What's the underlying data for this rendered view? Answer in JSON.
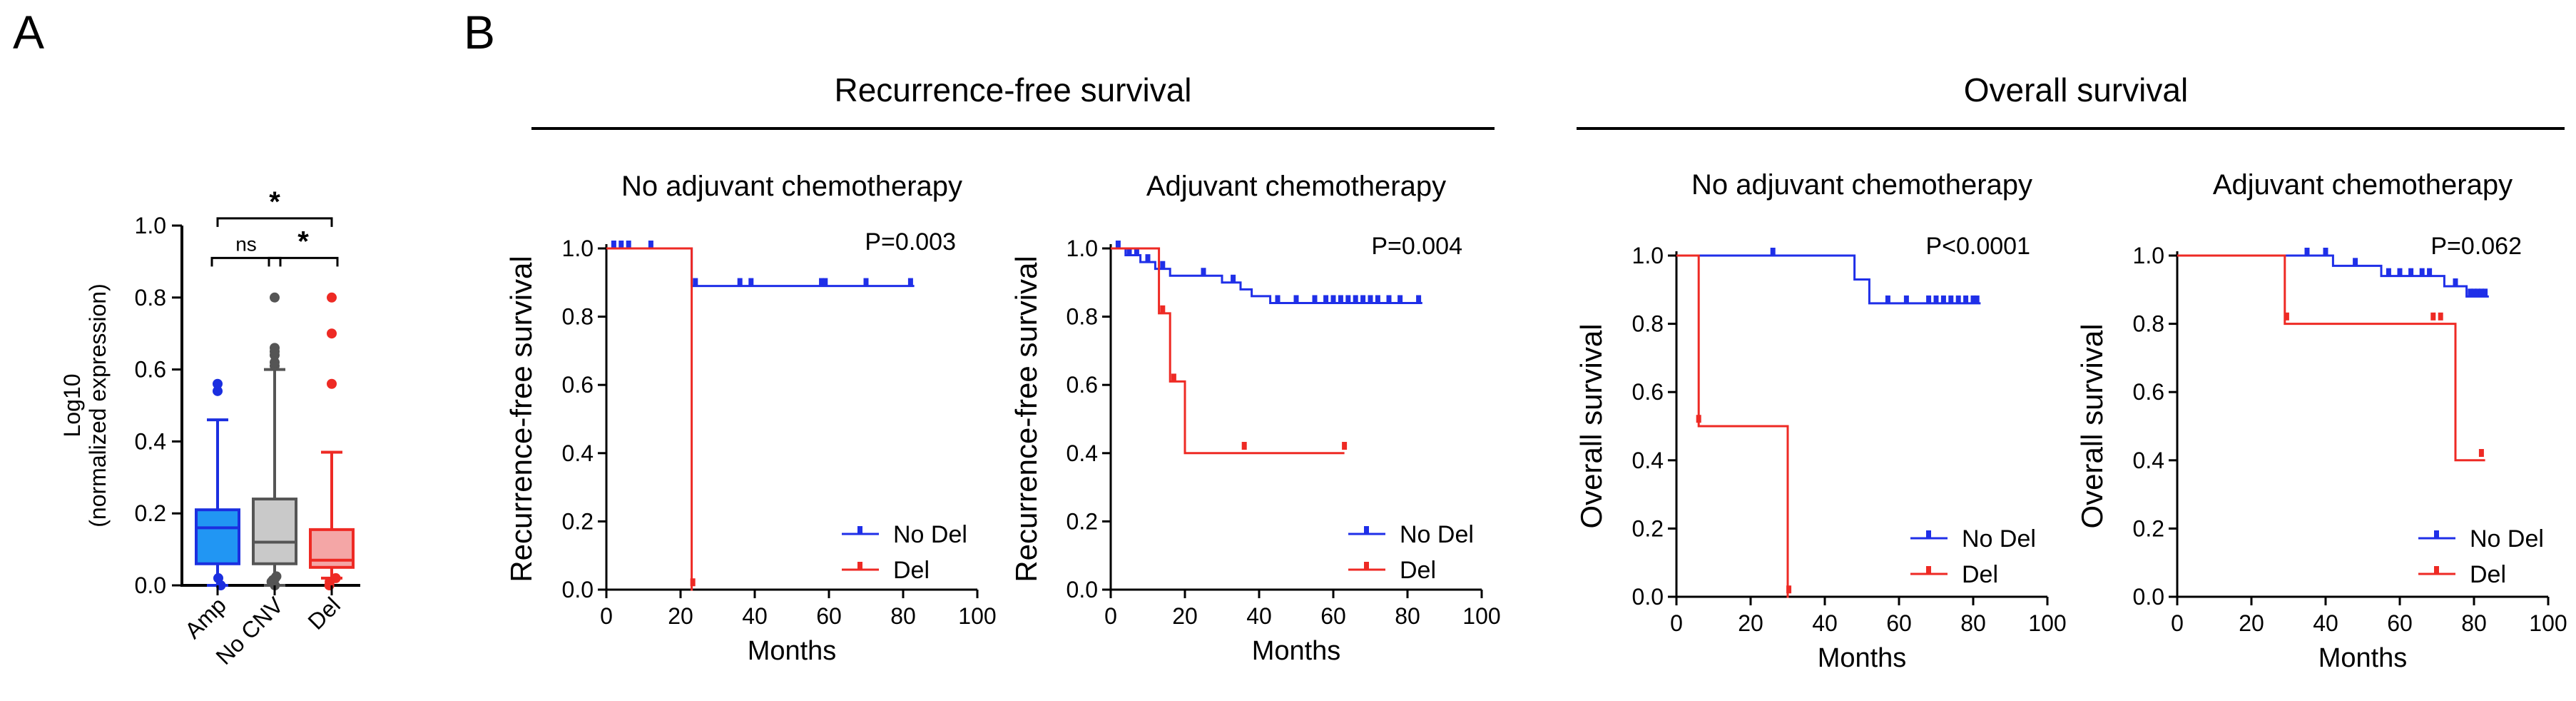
{
  "panels": {
    "a": "A",
    "b": "B"
  },
  "headers": {
    "rfs": "Recurrence-free survival",
    "os": "Overall survival"
  },
  "colors": {
    "nodel": "#1f2fe8",
    "del": "#ee2a24",
    "amp_fill": "#2196f3",
    "amp_stroke": "#1b2fe0",
    "nocnv_fill": "#c9c9c9",
    "nocnv_stroke": "#555555",
    "del_fill": "#f4a6a6",
    "del_stroke": "#ee2a24"
  },
  "chart_data": [
    {
      "id": "boxplot",
      "type": "box",
      "ylabel": "Log10",
      "ylabel2": "(normalized expression)",
      "ylim": [
        0,
        1.0
      ],
      "yticks": [
        0.0,
        0.2,
        0.4,
        0.6,
        0.8,
        1.0
      ],
      "ytick_labels": [
        "0.0",
        "0.2",
        "0.4",
        "0.6",
        "0.8",
        "1.0"
      ],
      "categories": [
        "Amp",
        "No CNV",
        "Del"
      ],
      "boxes": [
        {
          "name": "Amp",
          "whisker_low": 0.0,
          "q1": 0.06,
          "median": 0.16,
          "q3": 0.21,
          "whisker_high": 0.46,
          "outliers": [
            0.54,
            0.56,
            0.0,
            0.02
          ],
          "fill": "amp_fill",
          "stroke": "amp_stroke"
        },
        {
          "name": "No CNV",
          "whisker_low": 0.0,
          "q1": 0.06,
          "median": 0.12,
          "q3": 0.24,
          "whisker_high": 0.6,
          "outliers": [
            0.61,
            0.62,
            0.64,
            0.65,
            0.66,
            0.8,
            0.0,
            0.01,
            0.015,
            0.02,
            0.025
          ],
          "fill": "nocnv_fill",
          "stroke": "nocnv_stroke"
        },
        {
          "name": "Del",
          "whisker_low": 0.02,
          "q1": 0.05,
          "median": 0.07,
          "q3": 0.155,
          "whisker_high": 0.37,
          "outliers": [
            0.56,
            0.7,
            0.8,
            0.0,
            0.01,
            0.02
          ],
          "fill": "del_fill",
          "stroke": "del_stroke"
        }
      ],
      "brackets": [
        {
          "from": "Amp",
          "to": "No CNV",
          "level": 0.91,
          "label": "ns"
        },
        {
          "from": "No CNV",
          "to": "Del",
          "level": 0.91,
          "label": "*"
        },
        {
          "from": "Amp",
          "to": "Del",
          "level": 1.02,
          "label": "*"
        }
      ]
    },
    {
      "id": "km1",
      "type": "line",
      "subtitle": "No adjuvant chemotherapy",
      "ylabel": "Recurrence-free survival",
      "xlabel": "Months",
      "xlim": [
        0,
        100
      ],
      "ylim": [
        0,
        1.0
      ],
      "xticks": [
        0,
        20,
        40,
        60,
        80,
        100
      ],
      "xtick_labels": [
        "0",
        "20",
        "40",
        "60",
        "80",
        "100"
      ],
      "yticks": [
        0.0,
        0.2,
        0.4,
        0.6,
        0.8,
        1.0
      ],
      "ytick_labels": [
        "0.0",
        "0.2",
        "0.4",
        "0.6",
        "0.8",
        "1.0"
      ],
      "pvalue": "P=0.003",
      "series": [
        {
          "name": "No Del",
          "color": "nodel",
          "steps": [
            [
              0,
              1.0
            ],
            [
              23,
              0.89
            ],
            [
              83,
              0.89
            ]
          ],
          "censors": [
            [
              2,
              1.0
            ],
            [
              4,
              1.0
            ],
            [
              6,
              1.0
            ],
            [
              12,
              1.0
            ],
            [
              24,
              0.89
            ],
            [
              36,
              0.89
            ],
            [
              39,
              0.89
            ],
            [
              58,
              0.89
            ],
            [
              59,
              0.89
            ],
            [
              70,
              0.89
            ],
            [
              82,
              0.89
            ]
          ]
        },
        {
          "name": "Del",
          "color": "del",
          "steps": [
            [
              0,
              1.0
            ],
            [
              23,
              0.0
            ],
            [
              23.3,
              0.0
            ]
          ],
          "censors": [
            [
              23.3,
              0.01
            ]
          ]
        }
      ]
    },
    {
      "id": "km2",
      "type": "line",
      "subtitle": "Adjuvant chemotherapy",
      "ylabel": "Recurrence-free survival",
      "xlabel": "Months",
      "xlim": [
        0,
        100
      ],
      "ylim": [
        0,
        1.0
      ],
      "xticks": [
        0,
        20,
        40,
        60,
        80,
        100
      ],
      "xtick_labels": [
        "0",
        "20",
        "40",
        "60",
        "80",
        "100"
      ],
      "yticks": [
        0.0,
        0.2,
        0.4,
        0.6,
        0.8,
        1.0
      ],
      "ytick_labels": [
        "0.0",
        "0.2",
        "0.4",
        "0.6",
        "0.8",
        "1.0"
      ],
      "pvalue": "P=0.004",
      "series": [
        {
          "name": "No Del",
          "color": "nodel",
          "steps": [
            [
              0,
              1.0
            ],
            [
              4,
              0.98
            ],
            [
              8,
              0.96
            ],
            [
              12,
              0.94
            ],
            [
              16,
              0.92
            ],
            [
              30,
              0.9
            ],
            [
              35,
              0.88
            ],
            [
              38,
              0.86
            ],
            [
              43,
              0.84
            ],
            [
              84,
              0.84
            ]
          ],
          "censors": [
            [
              2,
              1.0
            ],
            [
              5,
              0.98
            ],
            [
              7,
              0.98
            ],
            [
              10,
              0.96
            ],
            [
              14,
              0.94
            ],
            [
              25,
              0.92
            ],
            [
              33,
              0.9
            ],
            [
              45,
              0.84
            ],
            [
              50,
              0.84
            ],
            [
              55,
              0.84
            ],
            [
              58,
              0.84
            ],
            [
              60,
              0.84
            ],
            [
              62,
              0.84
            ],
            [
              64,
              0.84
            ],
            [
              66,
              0.84
            ],
            [
              68,
              0.84
            ],
            [
              70,
              0.84
            ],
            [
              72,
              0.84
            ],
            [
              75,
              0.84
            ],
            [
              78,
              0.84
            ],
            [
              83,
              0.84
            ]
          ]
        },
        {
          "name": "Del",
          "color": "del",
          "steps": [
            [
              0,
              1.0
            ],
            [
              12,
              1.0
            ],
            [
              13,
              0.81
            ],
            [
              16,
              0.61
            ],
            [
              20,
              0.4
            ],
            [
              63,
              0.4
            ]
          ],
          "censors": [
            [
              14,
              0.81
            ],
            [
              17,
              0.61
            ],
            [
              36,
              0.41
            ],
            [
              63,
              0.41
            ]
          ]
        }
      ]
    },
    {
      "id": "km3",
      "type": "line",
      "subtitle": "No adjuvant chemotherapy",
      "ylabel": "Overall survival",
      "xlabel": "Months",
      "xlim": [
        0,
        100
      ],
      "ylim": [
        0,
        1.0
      ],
      "xticks": [
        0,
        20,
        40,
        60,
        80,
        100
      ],
      "xtick_labels": [
        "0",
        "20",
        "40",
        "60",
        "80",
        "100"
      ],
      "yticks": [
        0.0,
        0.2,
        0.4,
        0.6,
        0.8,
        1.0
      ],
      "ytick_labels": [
        "0.0",
        "0.2",
        "0.4",
        "0.6",
        "0.8",
        "1.0"
      ],
      "pvalue": "P<0.0001",
      "series": [
        {
          "name": "No Del",
          "color": "nodel",
          "steps": [
            [
              0,
              1.0
            ],
            [
              48,
              0.93
            ],
            [
              52,
              0.86
            ],
            [
              82,
              0.86
            ]
          ],
          "censors": [
            [
              26,
              1.0
            ],
            [
              57,
              0.86
            ],
            [
              62,
              0.86
            ],
            [
              68,
              0.86
            ],
            [
              70,
              0.86
            ],
            [
              72,
              0.86
            ],
            [
              74,
              0.86
            ],
            [
              76,
              0.86
            ],
            [
              78,
              0.86
            ],
            [
              80,
              0.86
            ],
            [
              81,
              0.86
            ]
          ]
        },
        {
          "name": "Del",
          "color": "del",
          "steps": [
            [
              0,
              1.0
            ],
            [
              6,
              0.5
            ],
            [
              30,
              0.0
            ],
            [
              30.3,
              0.0
            ]
          ],
          "censors": [
            [
              6,
              0.51
            ],
            [
              30.3,
              0.01
            ]
          ]
        }
      ]
    },
    {
      "id": "km4",
      "type": "line",
      "subtitle": "Adjuvant chemotherapy",
      "ylabel": "Overall survival",
      "xlabel": "Months",
      "xlim": [
        0,
        100
      ],
      "ylim": [
        0,
        1.0
      ],
      "xticks": [
        0,
        20,
        40,
        60,
        80,
        100
      ],
      "xtick_labels": [
        "0",
        "20",
        "40",
        "60",
        "80",
        "100"
      ],
      "yticks": [
        0.0,
        0.2,
        0.4,
        0.6,
        0.8,
        1.0
      ],
      "ytick_labels": [
        "0.0",
        "0.2",
        "0.4",
        "0.6",
        "0.8",
        "1.0"
      ],
      "pvalue": "P=0.062",
      "series": [
        {
          "name": "No Del",
          "color": "nodel",
          "steps": [
            [
              0,
              1.0
            ],
            [
              42,
              0.97
            ],
            [
              55,
              0.94
            ],
            [
              72,
              0.91
            ],
            [
              78,
              0.88
            ],
            [
              84,
              0.88
            ]
          ],
          "censors": [
            [
              35,
              1.0
            ],
            [
              40,
              1.0
            ],
            [
              48,
              0.97
            ],
            [
              57,
              0.94
            ],
            [
              60,
              0.94
            ],
            [
              63,
              0.94
            ],
            [
              66,
              0.94
            ],
            [
              68,
              0.94
            ],
            [
              75,
              0.91
            ],
            [
              79,
              0.88
            ],
            [
              80,
              0.88
            ],
            [
              81,
              0.88
            ],
            [
              82,
              0.88
            ],
            [
              83,
              0.88
            ]
          ]
        },
        {
          "name": "Del",
          "color": "del",
          "steps": [
            [
              0,
              1.0
            ],
            [
              29,
              0.8
            ],
            [
              75,
              0.4
            ],
            [
              83,
              0.4
            ]
          ],
          "censors": [
            [
              29.5,
              0.81
            ],
            [
              69,
              0.81
            ],
            [
              71,
              0.81
            ],
            [
              82,
              0.41
            ]
          ]
        }
      ]
    }
  ]
}
